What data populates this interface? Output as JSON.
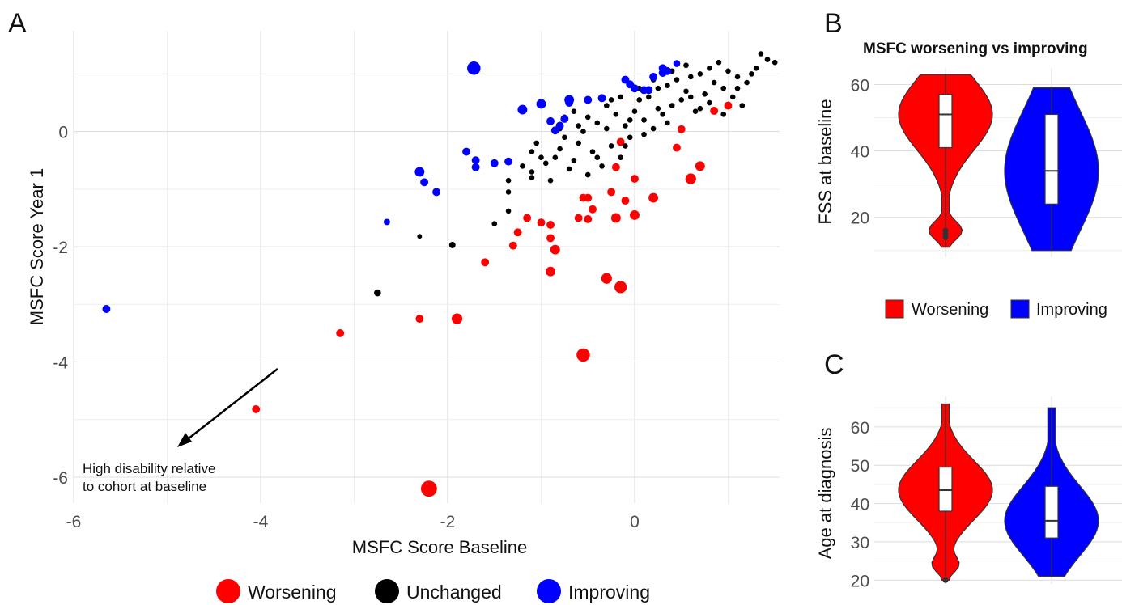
{
  "colors": {
    "worsening": "#ff0000",
    "unchanged": "#000000",
    "improving": "#0000ff"
  },
  "chart_data": [
    {
      "panel": "A",
      "type": "scatter",
      "xlabel": "MSFC Score Baseline",
      "ylabel": "MSFC Score Year 1",
      "xlim": [
        -6,
        1.55
      ],
      "ylim": [
        -6.45,
        1.75
      ],
      "xticks": [
        -6,
        -4,
        -2,
        0
      ],
      "yticks": [
        -6,
        -4,
        -2,
        0
      ],
      "grid": true,
      "annotation": {
        "line1": "High disability relative",
        "line2": "to cohort at baseline"
      },
      "legend": {
        "position": "bottom",
        "entries": [
          {
            "key": "worsening",
            "label": "Worsening"
          },
          {
            "key": "unchanged",
            "label": "Unchanged"
          },
          {
            "key": "improving",
            "label": "Improving"
          }
        ]
      },
      "series": [
        {
          "key": "worsening",
          "points": [
            [
              -2.2,
              -6.2,
              3
            ],
            [
              -0.55,
              -3.88,
              2.5
            ],
            [
              -4.05,
              -4.82,
              1.5
            ],
            [
              -3.15,
              -3.5,
              1.5
            ],
            [
              -1.9,
              -3.25,
              2
            ],
            [
              -2.3,
              -3.25,
              1.5
            ],
            [
              -0.15,
              -2.7,
              2.3
            ],
            [
              -0.3,
              -2.55,
              2
            ],
            [
              -0.9,
              -2.43,
              1.8
            ],
            [
              -1.6,
              -2.27,
              1.5
            ],
            [
              -0.85,
              -2.05,
              1.8
            ],
            [
              -1.3,
              -1.98,
              1.5
            ],
            [
              -0.9,
              -1.85,
              1.5
            ],
            [
              -1.25,
              -1.75,
              1.5
            ],
            [
              -0.9,
              -1.62,
              1.5
            ],
            [
              -1.0,
              -1.58,
              1.5
            ],
            [
              -1.15,
              -1.5,
              1.5
            ],
            [
              -0.5,
              -1.52,
              1.5
            ],
            [
              -0.6,
              -1.5,
              1.5
            ],
            [
              -0.2,
              -1.5,
              1.8
            ],
            [
              0.0,
              -1.45,
              1.8
            ],
            [
              -0.45,
              -1.35,
              1.5
            ],
            [
              -0.1,
              -1.2,
              1.5
            ],
            [
              0.2,
              -1.15,
              1.8
            ],
            [
              -0.5,
              -1.15,
              1.5
            ],
            [
              -0.55,
              -1.15,
              1.5
            ],
            [
              -0.25,
              -1.05,
              1.5
            ],
            [
              0.6,
              -0.82,
              2
            ],
            [
              0.0,
              -0.82,
              1.5
            ],
            [
              0.7,
              -0.6,
              1.8
            ],
            [
              -0.2,
              -0.62,
              1.5
            ],
            [
              0.45,
              -0.28,
              1.5
            ],
            [
              -0.15,
              -0.18,
              1.5
            ],
            [
              0.5,
              0.04,
              1.5
            ],
            [
              0.85,
              0.36,
              1.5
            ],
            [
              1.0,
              0.45,
              1.5
            ]
          ]
        },
        {
          "key": "unchanged",
          "points": [
            [
              -2.75,
              -2.8,
              1.3
            ],
            [
              -1.95,
              -1.97,
              1.2
            ],
            [
              -2.3,
              -1.82,
              0.9
            ],
            [
              -1.5,
              -1.6,
              1
            ],
            [
              -1.35,
              -1.38,
              1
            ],
            [
              -1.35,
              -1.05,
              1
            ],
            [
              -1.35,
              -0.85,
              1
            ],
            [
              -1.1,
              -0.8,
              1
            ],
            [
              -1.1,
              -0.7,
              1
            ],
            [
              -1.1,
              -0.35,
              1
            ],
            [
              -1.05,
              -0.2,
              1
            ],
            [
              -0.9,
              -0.85,
              1
            ],
            [
              -0.95,
              -0.55,
              1
            ],
            [
              -0.85,
              -0.45,
              1
            ],
            [
              -0.8,
              -0.3,
              1
            ],
            [
              -0.75,
              -0.1,
              1
            ],
            [
              -0.7,
              -0.65,
              1
            ],
            [
              -0.65,
              -0.5,
              1
            ],
            [
              -0.6,
              -0.2,
              1
            ],
            [
              -0.55,
              0.0,
              1
            ],
            [
              -0.5,
              -0.75,
              1
            ],
            [
              -0.45,
              -0.35,
              1
            ],
            [
              -0.4,
              0.15,
              1
            ],
            [
              -0.35,
              -0.6,
              1
            ],
            [
              -0.3,
              0.05,
              1
            ],
            [
              -0.25,
              -0.25,
              1
            ],
            [
              -0.2,
              0.3,
              1
            ],
            [
              -0.15,
              -0.45,
              1
            ],
            [
              -0.1,
              0.1,
              1
            ],
            [
              -0.05,
              -0.1,
              1
            ],
            [
              0.0,
              0.35,
              1
            ],
            [
              0.05,
              0.55,
              1
            ],
            [
              0.1,
              0.2,
              1
            ],
            [
              0.15,
              0.6,
              1
            ],
            [
              0.2,
              0.05,
              1
            ],
            [
              0.25,
              0.75,
              1
            ],
            [
              0.3,
              0.3,
              1
            ],
            [
              0.35,
              0.8,
              1
            ],
            [
              0.4,
              0.45,
              1
            ],
            [
              0.45,
              0.9,
              1
            ],
            [
              0.5,
              0.55,
              1
            ],
            [
              0.55,
              0.7,
              1
            ],
            [
              0.6,
              0.95,
              1
            ],
            [
              0.65,
              0.35,
              1
            ],
            [
              0.7,
              1.0,
              1
            ],
            [
              0.75,
              0.65,
              1
            ],
            [
              0.8,
              1.1,
              1
            ],
            [
              0.85,
              0.85,
              1
            ],
            [
              0.9,
              1.2,
              1
            ],
            [
              0.95,
              0.75,
              1
            ],
            [
              1.0,
              1.05,
              1
            ],
            [
              1.05,
              0.6,
              1
            ],
            [
              1.1,
              0.95,
              1
            ],
            [
              1.15,
              0.45,
              1
            ],
            [
              1.2,
              0.85,
              1
            ],
            [
              1.25,
              1.0,
              1
            ],
            [
              1.35,
              1.35,
              1
            ],
            [
              1.42,
              1.25,
              1
            ],
            [
              1.5,
              1.2,
              1
            ],
            [
              1.3,
              1.1,
              1
            ],
            [
              -0.75,
              0.25,
              1
            ],
            [
              -0.65,
              0.35,
              1
            ],
            [
              -0.5,
              0.25,
              1
            ],
            [
              -0.3,
              0.45,
              1
            ],
            [
              -0.15,
              0.6,
              1
            ],
            [
              0.05,
              0.75,
              1
            ],
            [
              0.2,
              0.9,
              1
            ],
            [
              0.4,
              1.05,
              1
            ],
            [
              0.55,
              1.15,
              1
            ],
            [
              0.7,
              0.4,
              1
            ],
            [
              0.35,
              0.15,
              1
            ],
            [
              0.1,
              -0.05,
              1
            ],
            [
              -0.1,
              -0.25,
              1
            ],
            [
              -0.25,
              0.55,
              1
            ],
            [
              -0.4,
              -0.45,
              1
            ],
            [
              -0.6,
              0.1,
              1
            ],
            [
              -0.8,
              0.05,
              1
            ],
            [
              -1.0,
              -0.45,
              1
            ],
            [
              -1.2,
              -0.6,
              1
            ],
            [
              0.6,
              0.6,
              1
            ],
            [
              0.8,
              0.5,
              1
            ],
            [
              0.95,
              0.3,
              1
            ],
            [
              1.1,
              0.75,
              1
            ],
            [
              0.25,
              0.4,
              1
            ],
            [
              -0.05,
              0.2,
              1
            ]
          ]
        },
        {
          "key": "improving",
          "points": [
            [
              -5.65,
              -3.08,
              1.5
            ],
            [
              -1.72,
              1.1,
              2.5
            ],
            [
              -2.65,
              -1.57,
              1.2
            ],
            [
              -2.12,
              -1.05,
              1.5
            ],
            [
              -2.25,
              -0.88,
              1.5
            ],
            [
              -2.3,
              -0.7,
              1.8
            ],
            [
              -1.8,
              -0.35,
              1.5
            ],
            [
              -1.7,
              -0.5,
              1.5
            ],
            [
              -1.7,
              -0.62,
              1.5
            ],
            [
              -1.5,
              -0.55,
              1.5
            ],
            [
              -1.35,
              -0.52,
              1.5
            ],
            [
              -1.2,
              0.38,
              1.8
            ],
            [
              -1.0,
              0.48,
              1.8
            ],
            [
              -0.9,
              0.18,
              1.5
            ],
            [
              -0.85,
              0.02,
              1.5
            ],
            [
              -0.8,
              0.1,
              1.5
            ],
            [
              -0.75,
              0.22,
              1.5
            ],
            [
              -0.7,
              0.55,
              1.8
            ],
            [
              -0.7,
              0.5,
              1.5
            ],
            [
              -0.5,
              0.55,
              1.5
            ],
            [
              -0.35,
              0.58,
              1.5
            ],
            [
              -0.1,
              0.9,
              1.5
            ],
            [
              0.0,
              0.75,
              1.5
            ],
            [
              -0.05,
              0.82,
              1.5
            ],
            [
              0.1,
              0.72,
              1.5
            ],
            [
              0.15,
              0.72,
              1.5
            ],
            [
              0.2,
              0.95,
              1.5
            ],
            [
              0.3,
              1.1,
              1.5
            ],
            [
              0.3,
              1.02,
              1.5
            ],
            [
              0.35,
              1.05,
              1.5
            ],
            [
              0.45,
              1.18,
              1.3
            ]
          ]
        }
      ]
    },
    {
      "panel": "B",
      "type": "violin",
      "title": "MSFC worsening vs improving",
      "ylabel": "FSS at baseline",
      "ylim": [
        8,
        65
      ],
      "yticks": [
        20,
        40,
        60
      ],
      "groups": [
        {
          "key": "worsening",
          "min": 11,
          "q1": 41,
          "median": 51,
          "q3": 57,
          "max": 63,
          "outliers": [
            14,
            15,
            16
          ]
        },
        {
          "key": "improving",
          "min": 10,
          "q1": 24,
          "median": 34,
          "q3": 51,
          "max": 59,
          "outliers": []
        }
      ],
      "legend": {
        "position": "bottom",
        "entries": [
          {
            "key": "worsening",
            "label": "Worsening"
          },
          {
            "key": "improving",
            "label": "Improving"
          }
        ]
      }
    },
    {
      "panel": "C",
      "type": "violin",
      "ylabel": "Age at diagnosis",
      "ylim": [
        19,
        68
      ],
      "yticks": [
        20,
        30,
        40,
        50,
        60
      ],
      "groups": [
        {
          "key": "worsening",
          "min": 20,
          "q1": 38,
          "median": 43.5,
          "q3": 49.5,
          "max": 66,
          "outliers": [
            20
          ]
        },
        {
          "key": "improving",
          "min": 21,
          "q1": 31,
          "median": 35.5,
          "q3": 44.5,
          "max": 65,
          "outliers": []
        }
      ]
    }
  ]
}
